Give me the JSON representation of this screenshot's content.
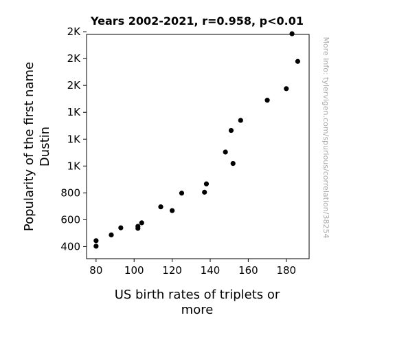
{
  "chart_data": {
    "type": "scatter",
    "title": "Years 2002-2021, r=0.958, p<0.01",
    "xlabel": [
      "US birth rates of triplets or",
      "more"
    ],
    "ylabel": [
      "Popularity of the first name",
      "Dustin"
    ],
    "xlim": [
      75,
      192
    ],
    "ylim": [
      310,
      1980
    ],
    "x_ticks": [
      {
        "value": 80,
        "label": "80"
      },
      {
        "value": 100,
        "label": "100"
      },
      {
        "value": 120,
        "label": "120"
      },
      {
        "value": 140,
        "label": "140"
      },
      {
        "value": 160,
        "label": "160"
      },
      {
        "value": 180,
        "label": "180"
      }
    ],
    "y_ticks": [
      {
        "value": 400,
        "label": "400"
      },
      {
        "value": 600,
        "label": "600"
      },
      {
        "value": 800,
        "label": "800"
      },
      {
        "value": 1000,
        "label": "1K"
      },
      {
        "value": 1200,
        "label": "1K"
      },
      {
        "value": 1400,
        "label": "1K"
      },
      {
        "value": 1600,
        "label": "2K"
      },
      {
        "value": 1800,
        "label": "2K"
      },
      {
        "value": 2000,
        "label": "2K"
      }
    ],
    "points": [
      {
        "x": 80,
        "y": 403
      },
      {
        "x": 80,
        "y": 444
      },
      {
        "x": 88,
        "y": 487
      },
      {
        "x": 93,
        "y": 540
      },
      {
        "x": 102,
        "y": 551
      },
      {
        "x": 102,
        "y": 536
      },
      {
        "x": 104,
        "y": 577
      },
      {
        "x": 114,
        "y": 696
      },
      {
        "x": 120,
        "y": 668
      },
      {
        "x": 125,
        "y": 798
      },
      {
        "x": 137,
        "y": 805
      },
      {
        "x": 138,
        "y": 867
      },
      {
        "x": 148,
        "y": 1104
      },
      {
        "x": 151,
        "y": 1265
      },
      {
        "x": 152,
        "y": 1019
      },
      {
        "x": 156,
        "y": 1340
      },
      {
        "x": 170,
        "y": 1490
      },
      {
        "x": 180,
        "y": 1576
      },
      {
        "x": 183,
        "y": 1985
      },
      {
        "x": 186,
        "y": 1779
      }
    ],
    "grid": false,
    "legend": "none",
    "point_color": "#000000"
  },
  "watermark": "More info: tylervigen.com/spurious/correlation/38254"
}
